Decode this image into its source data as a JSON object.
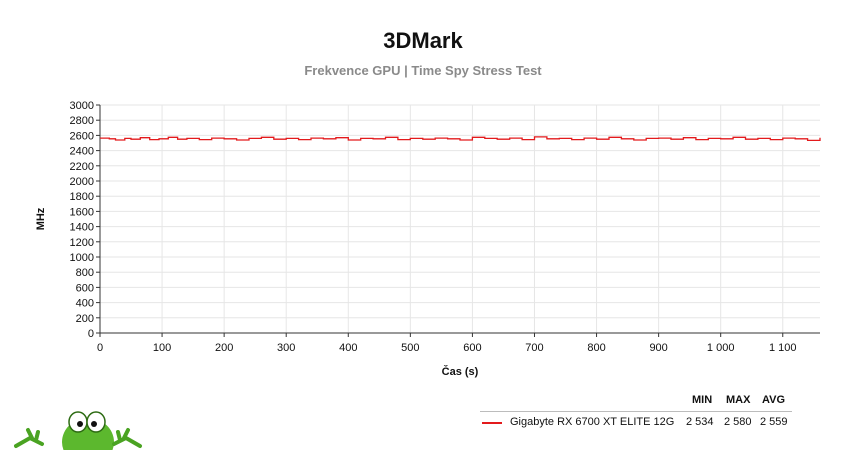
{
  "chart_data": {
    "type": "line",
    "title": "3DMark",
    "subtitle": "Frekvence GPU | Time Spy Stress Test",
    "xlabel": "Čas (s)",
    "ylabel": "MHz",
    "xlim": [
      0,
      1160
    ],
    "ylim": [
      0,
      3000
    ],
    "x_ticks": [
      0,
      100,
      200,
      300,
      400,
      500,
      600,
      700,
      800,
      900,
      1000,
      1100
    ],
    "x_tick_labels": [
      "0",
      "100",
      "200",
      "300",
      "400",
      "500",
      "600",
      "700",
      "800",
      "900",
      "1 000",
      "1 100"
    ],
    "y_ticks": [
      0,
      200,
      400,
      600,
      800,
      1000,
      1200,
      1400,
      1600,
      1800,
      2000,
      2200,
      2400,
      2600,
      2800,
      3000
    ],
    "grid": true,
    "series": [
      {
        "name": "Gigabyte RX 6700 XT ELITE 12G",
        "color": "#e31a1c",
        "x": [
          0,
          15,
          25,
          40,
          50,
          65,
          80,
          95,
          110,
          125,
          140,
          160,
          180,
          200,
          220,
          240,
          260,
          280,
          300,
          320,
          340,
          360,
          380,
          400,
          420,
          440,
          460,
          480,
          500,
          520,
          540,
          560,
          580,
          600,
          620,
          640,
          660,
          680,
          700,
          720,
          740,
          760,
          780,
          800,
          820,
          840,
          860,
          880,
          900,
          920,
          940,
          960,
          980,
          1000,
          1020,
          1040,
          1060,
          1080,
          1100,
          1120,
          1140,
          1160
        ],
        "y": [
          2565,
          2555,
          2540,
          2560,
          2550,
          2570,
          2545,
          2555,
          2575,
          2550,
          2560,
          2545,
          2565,
          2555,
          2540,
          2560,
          2575,
          2550,
          2560,
          2545,
          2565,
          2555,
          2570,
          2540,
          2560,
          2555,
          2575,
          2545,
          2560,
          2550,
          2565,
          2555,
          2540,
          2575,
          2560,
          2550,
          2565,
          2545,
          2580,
          2555,
          2560,
          2545,
          2565,
          2550,
          2575,
          2555,
          2540,
          2560,
          2565,
          2550,
          2570,
          2545,
          2560,
          2555,
          2575,
          2550,
          2560,
          2545,
          2565,
          2555,
          2534,
          2570
        ]
      }
    ],
    "stats": {
      "headers": [
        "MIN",
        "MAX",
        "AVG"
      ],
      "rows": [
        {
          "name": "Gigabyte RX 6700 XT ELITE 12G",
          "min": "2 534",
          "max": "2 580",
          "avg": "2 559"
        }
      ]
    }
  }
}
